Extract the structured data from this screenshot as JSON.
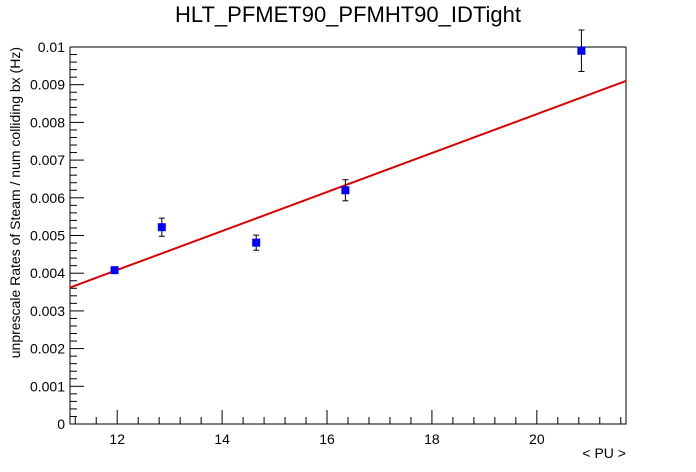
{
  "chart_data": {
    "type": "scatter",
    "title": "HLT_PFMET90_PFMHT90_IDTight",
    "xlabel": "< PU >",
    "ylabel": "unprescale Rates of Steam / num colliding bx (Hz)",
    "xlim": [
      11.1,
      21.7
    ],
    "ylim": [
      0,
      0.01
    ],
    "x_ticks": [
      12,
      14,
      16,
      18,
      20
    ],
    "x_tick_labels": [
      "12",
      "14",
      "16",
      "18",
      "20"
    ],
    "y_ticks": [
      0,
      0.001,
      0.002,
      0.003,
      0.004,
      0.005,
      0.006,
      0.007,
      0.008,
      0.009,
      0.01
    ],
    "y_tick_labels": [
      "0",
      "0.001",
      "0.002",
      "0.003",
      "0.004",
      "0.005",
      "0.006",
      "0.007",
      "0.008",
      "0.009",
      "0.01"
    ],
    "grid": false,
    "legend": "none",
    "series": [
      {
        "type": "scatter",
        "color": "#0000ff",
        "marker": "square",
        "points": [
          {
            "x": 11.95,
            "y": 0.00408,
            "err": 6e-05
          },
          {
            "x": 12.85,
            "y": 0.00522,
            "err": 0.00024
          },
          {
            "x": 14.65,
            "y": 0.00481,
            "err": 0.0002
          },
          {
            "x": 16.35,
            "y": 0.0062,
            "err": 0.00028
          },
          {
            "x": 20.85,
            "y": 0.0099,
            "err": 0.00055
          }
        ]
      },
      {
        "type": "line",
        "color": "#dd0000",
        "fit": "linear",
        "x": [
          11.1,
          21.7
        ],
        "y": [
          0.00362,
          0.0091
        ]
      }
    ]
  }
}
